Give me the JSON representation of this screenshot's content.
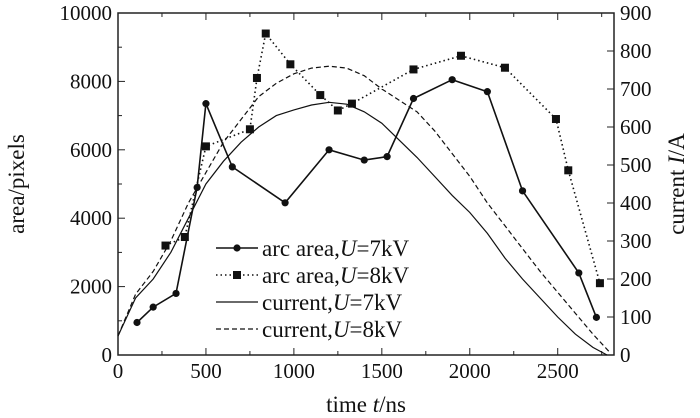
{
  "chart_data": {
    "type": "line",
    "xlabel": "time t/ns",
    "ylabel_left": "area/pixels",
    "ylabel_right": "current I/A",
    "xlim": [
      0,
      2820
    ],
    "ylim_left": [
      0,
      10000
    ],
    "ylim_right": [
      0,
      900
    ],
    "xticks": [
      0,
      500,
      1000,
      1500,
      2000,
      2500
    ],
    "yticks_left": [
      0,
      2000,
      4000,
      6000,
      8000,
      10000
    ],
    "yticks_right": [
      0,
      100,
      200,
      300,
      400,
      500,
      600,
      700,
      800,
      900
    ],
    "legend_position": "center-left",
    "series": [
      {
        "name": "arc area,U=7kV",
        "axis": "left",
        "style": "solid-circle",
        "x": [
          108,
          200,
          330,
          450,
          500,
          650,
          950,
          1200,
          1400,
          1530,
          1680,
          1900,
          2100,
          2300,
          2620,
          2720
        ],
        "y": [
          950,
          1400,
          1800,
          4900,
          7350,
          5500,
          4450,
          6000,
          5700,
          5800,
          7500,
          8050,
          7700,
          4800,
          2400,
          1100
        ]
      },
      {
        "name": "arc area,U=8kV",
        "axis": "left",
        "style": "dotted-square",
        "x": [
          270,
          380,
          500,
          750,
          790,
          840,
          980,
          1150,
          1250,
          1330,
          1680,
          1950,
          2200,
          2490,
          2560,
          2740
        ],
        "y": [
          3200,
          3450,
          6100,
          6600,
          8100,
          9400,
          8500,
          7600,
          7150,
          7350,
          8350,
          8750,
          8400,
          6900,
          5400,
          2100
        ]
      },
      {
        "name": "current,U=7kV",
        "axis": "right",
        "style": "solid",
        "x": [
          0,
          50,
          100,
          200,
          300,
          400,
          500,
          600,
          700,
          800,
          900,
          1000,
          1100,
          1200,
          1300,
          1400,
          1500,
          1600,
          1700,
          1800,
          1900,
          2000,
          2100,
          2200,
          2300,
          2400,
          2500,
          2600,
          2700,
          2780
        ],
        "y": [
          50,
          100,
          150,
          200,
          270,
          360,
          450,
          510,
          560,
          600,
          630,
          645,
          658,
          665,
          660,
          640,
          610,
          565,
          520,
          470,
          420,
          375,
          320,
          255,
          200,
          150,
          100,
          55,
          20,
          0
        ]
      },
      {
        "name": "current,U=8kV",
        "axis": "right",
        "style": "dashed",
        "x": [
          0,
          100,
          200,
          300,
          400,
          500,
          600,
          700,
          800,
          900,
          1000,
          1100,
          1200,
          1300,
          1400,
          1500,
          1600,
          1700,
          1800,
          1900,
          2000,
          2100,
          2200,
          2300,
          2400,
          2500,
          2600,
          2700,
          2800
        ],
        "y": [
          50,
          160,
          220,
          300,
          400,
          480,
          560,
          620,
          680,
          715,
          740,
          755,
          760,
          755,
          735,
          700,
          670,
          640,
          590,
          530,
          470,
          400,
          340,
          280,
          220,
          165,
          110,
          55,
          5
        ]
      }
    ],
    "legend": {
      "labels": [
        "arc area,",
        "arc area,",
        "current,",
        "current,"
      ],
      "vars": [
        "U",
        "U",
        "U",
        "U"
      ],
      "vals": [
        "=7kV",
        "=8kV",
        "=7kV",
        "=8kV"
      ]
    },
    "axis_label_parts": {
      "x": [
        "time ",
        "t",
        "/ns"
      ],
      "left": "area/pixels",
      "right": [
        "current ",
        "I",
        "/A"
      ]
    }
  }
}
